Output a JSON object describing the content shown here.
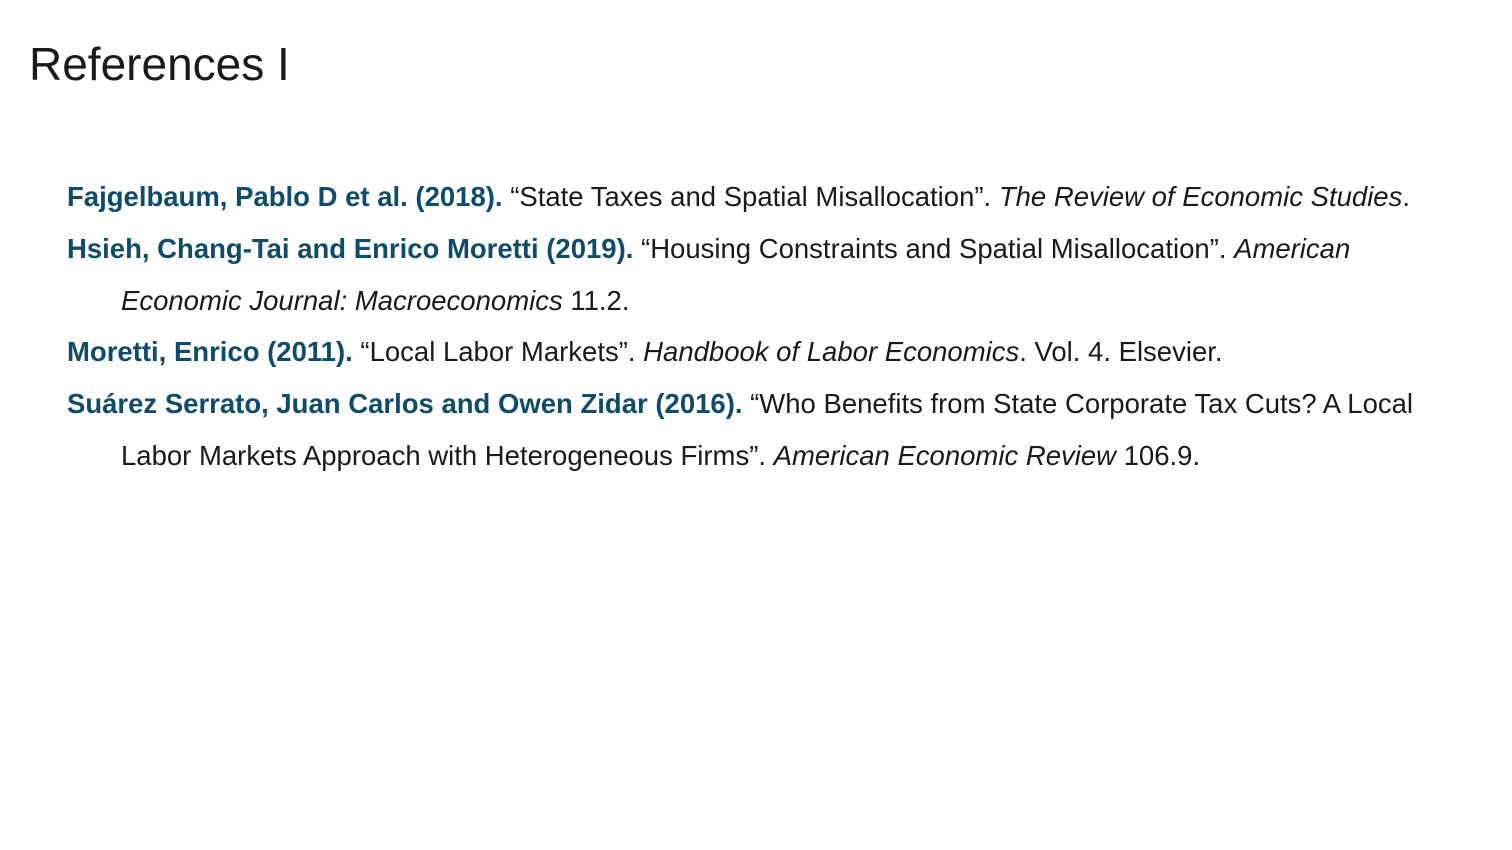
{
  "title": "References I",
  "references": [
    {
      "author": "Fajgelbaum, Pablo D et al. (2018).",
      "article": "“State Taxes and Spatial Misallocation”.",
      "venue": "The Review of Economic Studies",
      "tail": "."
    },
    {
      "author": "Hsieh, Chang-Tai and Enrico Moretti (2019).",
      "article": "“Housing Constraints and Spatial Misallocation”.",
      "venue": "American Economic Journal: Macroeconomics",
      "tail": " 11.2."
    },
    {
      "author": "Moretti, Enrico (2011).",
      "article": "“Local Labor Markets”.",
      "venue": "Handbook of Labor Economics",
      "tail": ". Vol. 4. Elsevier."
    },
    {
      "author": "Suárez Serrato, Juan Carlos and Owen Zidar (2016).",
      "article": "“Who Benefits from State Corporate Tax Cuts? A Local Labor Markets Approach with Heterogeneous Firms”.",
      "venue": "American Economic Review",
      "tail": " 106.9."
    }
  ]
}
